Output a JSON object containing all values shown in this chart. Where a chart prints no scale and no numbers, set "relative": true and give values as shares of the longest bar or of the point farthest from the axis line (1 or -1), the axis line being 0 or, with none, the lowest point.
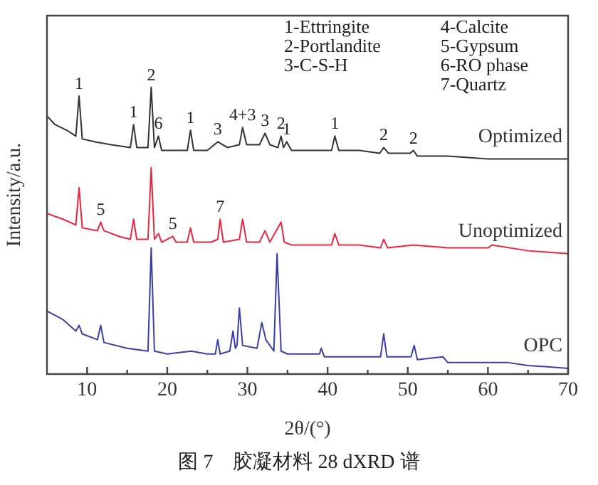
{
  "chart_data": {
    "type": "line",
    "title": "图 7　胶凝材料 28 dXRD 谱",
    "xlabel": "2θ/(°)",
    "ylabel": "Intensity/a.u.",
    "relative": true,
    "marker": "none",
    "xlim": [
      5,
      70
    ],
    "xticks": [
      10,
      {
        "value": 15,
        "label": null
      },
      20,
      {
        "value": 25,
        "label": null
      },
      30,
      {
        "value": 35,
        "label": null
      },
      40,
      {
        "value": 45,
        "label": null
      },
      50,
      {
        "value": 55,
        "label": null
      },
      60,
      {
        "value": 65,
        "label": null
      },
      70
    ],
    "series": [
      {
        "name": "Optimized",
        "color": "#333333",
        "x": [
          5,
          6,
          7.5,
          8.6,
          9.0,
          9.4,
          11,
          13,
          15.4,
          15.8,
          16.2,
          17.6,
          18.0,
          18.4,
          18.9,
          19.3,
          21,
          22.5,
          22.9,
          23.3,
          25,
          26.3,
          27.5,
          29.0,
          29.4,
          29.9,
          31.5,
          32.2,
          32.8,
          33.8,
          34.2,
          34.5,
          34.9,
          35.5,
          38,
          40.5,
          40.9,
          41.4,
          44,
          46.5,
          47.0,
          47.6,
          50.3,
          50.7,
          51.2,
          55,
          60,
          65,
          70
        ],
        "values": [
          0.9,
          0.87,
          0.85,
          0.83,
          0.97,
          0.82,
          0.81,
          0.8,
          0.79,
          0.87,
          0.79,
          0.79,
          1.0,
          0.79,
          0.83,
          0.78,
          0.78,
          0.78,
          0.85,
          0.78,
          0.78,
          0.81,
          0.79,
          0.8,
          0.86,
          0.8,
          0.8,
          0.84,
          0.8,
          0.79,
          0.83,
          0.79,
          0.81,
          0.78,
          0.78,
          0.78,
          0.83,
          0.78,
          0.78,
          0.77,
          0.79,
          0.77,
          0.77,
          0.78,
          0.76,
          0.76,
          0.75,
          0.75,
          0.75
        ]
      },
      {
        "name": "Unoptimized",
        "color": "#e8263f",
        "x": [
          5,
          7,
          8.6,
          9.0,
          9.4,
          11.3,
          11.7,
          12.1,
          14,
          15.4,
          15.8,
          16.2,
          17.6,
          18.0,
          18.4,
          18.9,
          19.3,
          20.7,
          21.1,
          22.5,
          22.9,
          23.3,
          25.5,
          26.3,
          26.6,
          27,
          29.0,
          29.4,
          29.9,
          31.5,
          32.2,
          32.8,
          34.2,
          34.6,
          35.5,
          38,
          40.5,
          40.9,
          41.4,
          44,
          46.6,
          47.0,
          47.5,
          50.7,
          55,
          60,
          60.5,
          65,
          70
        ],
        "values": [
          0.56,
          0.54,
          0.52,
          0.65,
          0.51,
          0.5,
          0.53,
          0.5,
          0.48,
          0.47,
          0.54,
          0.47,
          0.47,
          0.72,
          0.47,
          0.49,
          0.46,
          0.48,
          0.46,
          0.46,
          0.51,
          0.46,
          0.46,
          0.47,
          0.54,
          0.46,
          0.47,
          0.54,
          0.46,
          0.46,
          0.5,
          0.46,
          0.53,
          0.46,
          0.45,
          0.45,
          0.45,
          0.49,
          0.45,
          0.45,
          0.44,
          0.47,
          0.44,
          0.45,
          0.44,
          0.44,
          0.45,
          0.43,
          0.42
        ]
      },
      {
        "name": "OPC",
        "color": "#3a3fa8",
        "x": [
          5,
          7,
          8.6,
          9.0,
          9.4,
          11.3,
          11.7,
          12.1,
          15,
          17.6,
          18.0,
          18.4,
          20,
          23.0,
          25,
          26.0,
          26.3,
          26.6,
          27.8,
          28.2,
          28.5,
          28.7,
          29.0,
          29.4,
          31.2,
          31.8,
          32.3,
          33.3,
          33.7,
          34.2,
          35,
          39.0,
          39.2,
          39.6,
          46.6,
          47.0,
          47.4,
          50.4,
          50.8,
          51.2,
          54.4,
          55,
          60,
          62.5,
          65,
          70
        ],
        "values": [
          0.22,
          0.19,
          0.15,
          0.17,
          0.14,
          0.12,
          0.17,
          0.11,
          0.09,
          0.08,
          0.44,
          0.08,
          0.07,
          0.08,
          0.07,
          0.07,
          0.12,
          0.07,
          0.08,
          0.15,
          0.09,
          0.1,
          0.23,
          0.1,
          0.09,
          0.18,
          0.12,
          0.08,
          0.42,
          0.08,
          0.07,
          0.07,
          0.09,
          0.06,
          0.06,
          0.14,
          0.06,
          0.06,
          0.1,
          0.05,
          0.06,
          0.04,
          0.04,
          0.04,
          0.03,
          0.02
        ]
      }
    ],
    "annotations": [
      "1-Ettringite",
      "2-Portlandite",
      "3-C-S-H",
      "4-Calcite",
      "5-Gypsum",
      "6-RO phase",
      "7-Quartz",
      {
        "text": "1",
        "x": 9.0,
        "y": 0.97
      },
      {
        "text": "1",
        "x": 15.8,
        "y": 0.87
      },
      {
        "text": "2",
        "x": 18.0,
        "y": 1.0
      },
      {
        "text": "6",
        "x": 18.9,
        "y": 0.83
      },
      {
        "text": "1",
        "x": 22.9,
        "y": 0.85
      },
      {
        "text": "3",
        "x": 26.3,
        "y": 0.81
      },
      {
        "text": "4+3",
        "x": 29.4,
        "y": 0.86
      },
      {
        "text": "3",
        "x": 32.2,
        "y": 0.84
      },
      {
        "text": "2",
        "x": 34.2,
        "y": 0.83
      },
      {
        "text": "1",
        "x": 34.9,
        "y": 0.81
      },
      {
        "text": "1",
        "x": 40.9,
        "y": 0.83
      },
      {
        "text": "2",
        "x": 47.0,
        "y": 0.79
      },
      {
        "text": "2",
        "x": 50.7,
        "y": 0.78
      },
      {
        "text": "5",
        "x": 11.7,
        "y": 0.53
      },
      {
        "text": "5",
        "x": 20.7,
        "y": 0.48
      },
      {
        "text": "7",
        "x": 26.6,
        "y": 0.54
      }
    ]
  }
}
